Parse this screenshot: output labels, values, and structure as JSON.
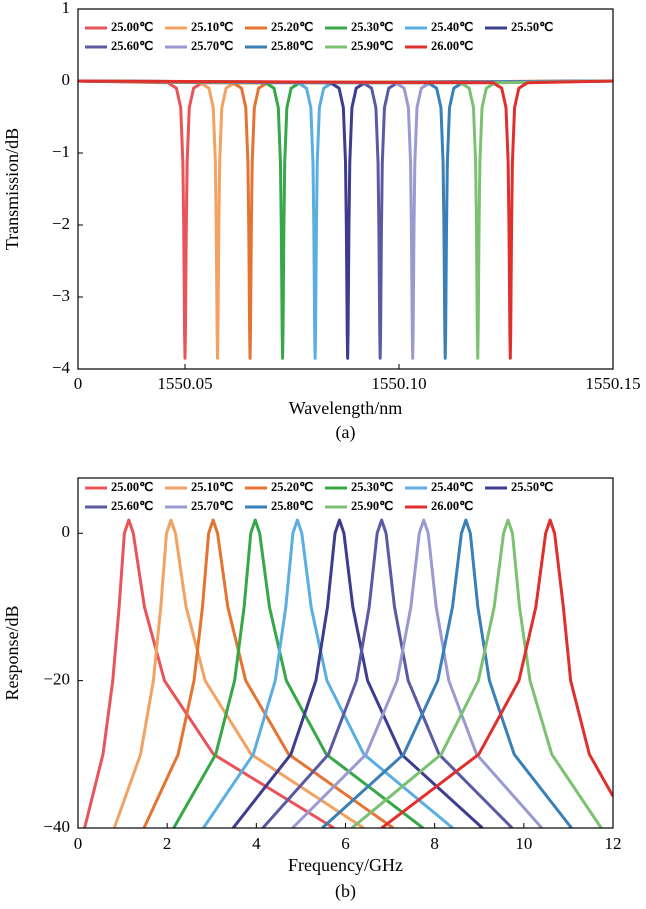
{
  "chart_data": [
    {
      "type": "line",
      "caption": "(a)",
      "xlabel": "Wavelength/nm",
      "ylabel": "Transmission/dB",
      "x_origin_label": "0",
      "xlim": [
        1550.025,
        1550.15
      ],
      "xticks": [
        1550.05,
        {
          "value": 1550.1,
          "label": "1550.10"
        },
        1550.15
      ],
      "ylim": [
        -4,
        1
      ],
      "yticks": [
        1,
        0,
        {
          "value": -1,
          "label": "−1"
        },
        {
          "value": -2,
          "label": "−2"
        },
        {
          "value": -3,
          "label": "−3"
        },
        {
          "value": -4,
          "label": "−4"
        }
      ],
      "legend": "top-left",
      "series": [
        {
          "name": "25.00℃",
          "color": "#e8545a",
          "x": [
            1550.025,
            1550.046,
            1550.048,
            1550.049,
            1550.0495,
            1550.0497,
            1550.0498,
            1550.0499,
            1550.05,
            1550.0501,
            1550.0502,
            1550.0503,
            1550.0505,
            1550.051,
            1550.052,
            1550.054,
            1550.15
          ],
          "values": [
            0,
            -0.025,
            -0.1,
            -0.37,
            -1.13,
            -2.05,
            -2.76,
            -3.49,
            -3.85,
            -3.49,
            -2.76,
            -2.05,
            -1.13,
            -0.37,
            -0.1,
            -0.025,
            0
          ]
        },
        {
          "name": "25.10℃",
          "color": "#f2a262",
          "x": [
            1550.025,
            1550.0536,
            1550.0556,
            1550.0566,
            1550.0571,
            1550.0573,
            1550.0574,
            1550.0575,
            1550.0576,
            1550.0577,
            1550.0578,
            1550.0579,
            1550.0581,
            1550.0586,
            1550.0596,
            1550.0616,
            1550.15
          ],
          "values": [
            0,
            -0.025,
            -0.1,
            -0.37,
            -1.13,
            -2.05,
            -2.76,
            -3.49,
            -3.85,
            -3.49,
            -2.76,
            -2.05,
            -1.13,
            -0.37,
            -0.1,
            -0.025,
            0
          ]
        },
        {
          "name": "25.20℃",
          "color": "#e57332",
          "x": [
            1550.025,
            1550.0612,
            1550.0632,
            1550.0642,
            1550.0647,
            1550.0649,
            1550.065,
            1550.0651,
            1550.0652,
            1550.0653,
            1550.0654,
            1550.0655,
            1550.0657,
            1550.0662,
            1550.0672,
            1550.0692,
            1550.15
          ],
          "values": [
            0,
            -0.025,
            -0.1,
            -0.37,
            -1.13,
            -2.05,
            -2.76,
            -3.49,
            -3.85,
            -3.49,
            -2.76,
            -2.05,
            -1.13,
            -0.37,
            -0.1,
            -0.025,
            0
          ]
        },
        {
          "name": "25.30℃",
          "color": "#36a847",
          "x": [
            1550.025,
            1550.0688,
            1550.0708,
            1550.0718,
            1550.0723,
            1550.0725,
            1550.0726,
            1550.0727,
            1550.0728,
            1550.0729,
            1550.073,
            1550.0731,
            1550.0733,
            1550.0738,
            1550.0748,
            1550.0768,
            1550.15
          ],
          "values": [
            0,
            -0.025,
            -0.1,
            -0.37,
            -1.13,
            -2.05,
            -2.76,
            -3.49,
            -3.85,
            -3.49,
            -2.76,
            -2.05,
            -1.13,
            -0.37,
            -0.1,
            -0.025,
            0
          ]
        },
        {
          "name": "25.40℃",
          "color": "#5aaee0",
          "x": [
            1550.025,
            1550.0764,
            1550.0784,
            1550.0794,
            1550.0799,
            1550.0801,
            1550.0802,
            1550.0803,
            1550.0804,
            1550.0805,
            1550.0806,
            1550.0807,
            1550.0809,
            1550.0814,
            1550.0824,
            1550.0844,
            1550.15
          ],
          "values": [
            0,
            -0.025,
            -0.1,
            -0.37,
            -1.13,
            -2.05,
            -2.76,
            -3.49,
            -3.85,
            -3.49,
            -2.76,
            -2.05,
            -1.13,
            -0.37,
            -0.1,
            -0.025,
            0
          ]
        },
        {
          "name": "25.50℃",
          "color": "#3d3d8f",
          "x": [
            1550.025,
            1550.084,
            1550.086,
            1550.087,
            1550.0875,
            1550.0877,
            1550.0878,
            1550.0879,
            1550.088,
            1550.0881,
            1550.0882,
            1550.0883,
            1550.0885,
            1550.089,
            1550.09,
            1550.092,
            1550.15
          ],
          "values": [
            0,
            -0.025,
            -0.1,
            -0.37,
            -1.13,
            -2.05,
            -2.76,
            -3.49,
            -3.85,
            -3.49,
            -2.76,
            -2.05,
            -1.13,
            -0.37,
            -0.1,
            -0.025,
            0
          ]
        },
        {
          "name": "25.60℃",
          "color": "#5a5aa3",
          "x": [
            1550.025,
            1550.0916,
            1550.0936,
            1550.0946,
            1550.0951,
            1550.0953,
            1550.0954,
            1550.0955,
            1550.0956,
            1550.0957,
            1550.0958,
            1550.0959,
            1550.0961,
            1550.0966,
            1550.0976,
            1550.0996,
            1550.15
          ],
          "values": [
            0,
            -0.025,
            -0.1,
            -0.37,
            -1.13,
            -2.05,
            -2.76,
            -3.49,
            -3.85,
            -3.49,
            -2.76,
            -2.05,
            -1.13,
            -0.37,
            -0.1,
            -0.025,
            0
          ]
        },
        {
          "name": "25.70℃",
          "color": "#9a9ad0",
          "x": [
            1550.025,
            1550.0992,
            1550.1012,
            1550.1022,
            1550.1027,
            1550.1029,
            1550.103,
            1550.1031,
            1550.1032,
            1550.1033,
            1550.1034,
            1550.1035,
            1550.1037,
            1550.1042,
            1550.1052,
            1550.1072,
            1550.15
          ],
          "values": [
            0,
            -0.025,
            -0.1,
            -0.37,
            -1.13,
            -2.05,
            -2.76,
            -3.49,
            -3.85,
            -3.49,
            -2.76,
            -2.05,
            -1.13,
            -0.37,
            -0.1,
            -0.025,
            0
          ]
        },
        {
          "name": "25.80℃",
          "color": "#3a80b8",
          "x": [
            1550.025,
            1550.1068,
            1550.1088,
            1550.1098,
            1550.1103,
            1550.1105,
            1550.1106,
            1550.1107,
            1550.1108,
            1550.1109,
            1550.111,
            1550.1111,
            1550.1113,
            1550.1118,
            1550.1128,
            1550.1148,
            1550.15
          ],
          "values": [
            0,
            -0.025,
            -0.1,
            -0.37,
            -1.13,
            -2.05,
            -2.76,
            -3.49,
            -3.85,
            -3.49,
            -2.76,
            -2.05,
            -1.13,
            -0.37,
            -0.1,
            -0.025,
            0
          ]
        },
        {
          "name": "25.90℃",
          "color": "#7cc172",
          "x": [
            1550.025,
            1550.1144,
            1550.1164,
            1550.1174,
            1550.1179,
            1550.1181,
            1550.1182,
            1550.1183,
            1550.1184,
            1550.1185,
            1550.1186,
            1550.1187,
            1550.1189,
            1550.1194,
            1550.1204,
            1550.1224,
            1550.15
          ],
          "values": [
            0,
            -0.025,
            -0.1,
            -0.37,
            -1.13,
            -2.05,
            -2.76,
            -3.49,
            -3.85,
            -3.49,
            -2.76,
            -2.05,
            -1.13,
            -0.37,
            -0.1,
            -0.025,
            0
          ]
        },
        {
          "name": "26.00℃",
          "color": "#e0302e",
          "x": [
            1550.025,
            1550.122,
            1550.124,
            1550.125,
            1550.1255,
            1550.1257,
            1550.1258,
            1550.1259,
            1550.126,
            1550.1261,
            1550.1262,
            1550.1263,
            1550.1265,
            1550.127,
            1550.128,
            1550.13,
            1550.15
          ],
          "values": [
            0,
            -0.025,
            -0.1,
            -0.37,
            -1.13,
            -2.05,
            -2.76,
            -3.49,
            -3.85,
            -3.49,
            -2.76,
            -2.05,
            -1.13,
            -0.37,
            -0.1,
            -0.025,
            0
          ]
        }
      ]
    },
    {
      "type": "line",
      "caption": "(b)",
      "xlabel": "Frequency/GHz",
      "ylabel": "Response/dB",
      "xlim": [
        0,
        12
      ],
      "xticks": [
        0,
        2,
        4,
        6,
        8,
        10,
        12
      ],
      "ylim": [
        -40,
        7.5
      ],
      "yticks": [
        0,
        {
          "value": -20,
          "label": "−20"
        },
        {
          "value": -40,
          "label": "−40"
        }
      ],
      "legend": "top-left",
      "series": [
        {
          "name": "25.00℃",
          "color": "#e8545a",
          "x": [
            0.148,
            0.56,
            0.78,
            0.922,
            1.04,
            1.14,
            1.24,
            1.49,
            1.94,
            3.04,
            5.74
          ],
          "values": [
            -40,
            -30,
            -20,
            -10,
            0,
            1.8,
            0,
            -10,
            -20,
            -30,
            -40
          ]
        },
        {
          "name": "25.10℃",
          "color": "#f2a262",
          "x": [
            0.814,
            1.403,
            1.691,
            1.857,
            1.985,
            2.085,
            2.185,
            2.425,
            2.851,
            3.883,
            6.406
          ],
          "values": [
            -40,
            -30,
            -20,
            -10,
            0,
            1.8,
            0,
            -10,
            -20,
            -30,
            -40
          ]
        },
        {
          "name": "25.20℃",
          "color": "#e57332",
          "x": [
            1.48,
            2.246,
            2.602,
            2.792,
            2.93,
            3.03,
            3.13,
            3.36,
            3.762,
            4.726,
            7.072
          ],
          "values": [
            -40,
            -30,
            -20,
            -10,
            0,
            1.8,
            0,
            -10,
            -20,
            -30,
            -40
          ]
        },
        {
          "name": "25.30℃",
          "color": "#36a847",
          "x": [
            2.147,
            3.089,
            3.513,
            3.726,
            3.875,
            3.975,
            4.075,
            4.294,
            4.673,
            5.569,
            7.739
          ],
          "values": [
            -40,
            -30,
            -20,
            -10,
            0,
            1.8,
            0,
            -10,
            -20,
            -30,
            -40
          ]
        },
        {
          "name": "25.40℃",
          "color": "#5aaee0",
          "x": [
            2.813,
            3.932,
            4.424,
            4.661,
            4.82,
            4.92,
            5.02,
            5.229,
            5.584,
            6.412,
            8.405
          ],
          "values": [
            -40,
            -30,
            -20,
            -10,
            0,
            1.8,
            0,
            -10,
            -20,
            -30,
            -40
          ]
        },
        {
          "name": "25.50℃",
          "color": "#3d3d8f",
          "x": [
            3.479,
            4.775,
            5.335,
            5.596,
            5.765,
            5.865,
            5.965,
            6.164,
            6.495,
            7.255,
            9.071
          ],
          "values": [
            -40,
            -30,
            -20,
            -10,
            0,
            1.8,
            0,
            -10,
            -20,
            -30,
            -40
          ]
        },
        {
          "name": "25.60℃",
          "color": "#5a5aa3",
          "x": [
            4.145,
            5.618,
            6.246,
            6.531,
            6.71,
            6.81,
            6.91,
            7.099,
            7.406,
            8.098,
            9.737
          ],
          "values": [
            -40,
            -30,
            -20,
            -10,
            0,
            1.8,
            0,
            -10,
            -20,
            -30,
            -40
          ]
        },
        {
          "name": "25.70℃",
          "color": "#9a9ad0",
          "x": [
            4.811,
            6.461,
            7.157,
            7.466,
            7.655,
            7.755,
            7.855,
            8.034,
            8.317,
            8.941,
            10.403
          ],
          "values": [
            -40,
            -30,
            -20,
            -10,
            0,
            1.8,
            0,
            -10,
            -20,
            -30,
            -40
          ]
        },
        {
          "name": "25.80℃",
          "color": "#3a80b8",
          "x": [
            5.478,
            7.304,
            8.068,
            8.4,
            8.6,
            8.7,
            8.8,
            8.968,
            9.228,
            9.784,
            11.07
          ],
          "values": [
            -40,
            -30,
            -20,
            -10,
            0,
            1.8,
            0,
            -10,
            -20,
            -30,
            -40
          ]
        },
        {
          "name": "25.90℃",
          "color": "#7cc172",
          "x": [
            6.144,
            8.147,
            8.979,
            9.335,
            9.545,
            9.645,
            9.745,
            9.903,
            10.139,
            10.627,
            11.736
          ],
          "values": [
            -40,
            -30,
            -20,
            -10,
            0,
            1.8,
            0,
            -10,
            -20,
            -30,
            -40
          ]
        },
        {
          "name": "26.00℃",
          "color": "#e0302e",
          "x": [
            6.81,
            8.99,
            9.89,
            10.27,
            10.49,
            10.59,
            10.69,
            10.886,
            11.05,
            11.47,
            12
          ],
          "values": [
            -40,
            -30,
            -20,
            -10,
            0,
            1.8,
            0,
            -10,
            -20,
            -30,
            -35.7
          ]
        }
      ]
    }
  ]
}
